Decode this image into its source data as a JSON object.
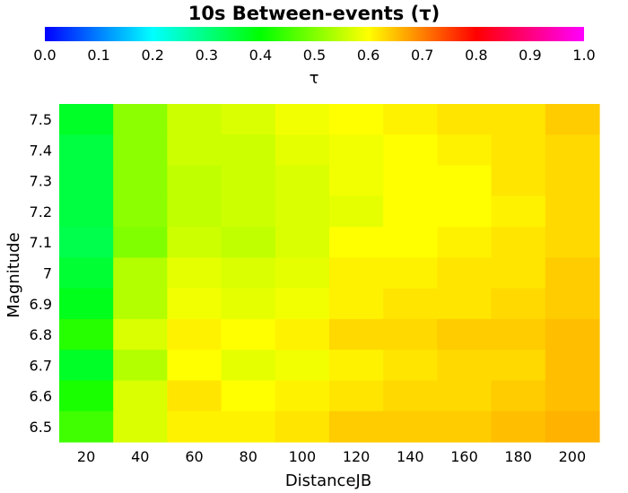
{
  "chart_data": {
    "type": "heatmap",
    "title": "10s Between-events (τ)",
    "colorbar": {
      "label": "τ",
      "range": [
        0.0,
        1.0
      ],
      "ticks": [
        "0.0",
        "0.1",
        "0.2",
        "0.3",
        "0.4",
        "0.5",
        "0.6",
        "0.7",
        "0.8",
        "0.9",
        "1.0"
      ],
      "colormap": [
        "#0000ff",
        "#00ffff",
        "#00ff00",
        "#ffff00",
        "#ff0000",
        "#ff00ff"
      ]
    },
    "xlabel": "DistanceJB",
    "ylabel": "Magnitude",
    "x": [
      20,
      40,
      60,
      80,
      100,
      120,
      140,
      160,
      180,
      200
    ],
    "y": [
      "7.5",
      "7.4",
      "7.3",
      "7.2",
      "7.1",
      "7",
      "6.9",
      "6.8",
      "6.7",
      "6.6",
      "6.5"
    ],
    "values": [
      [
        0.37,
        0.51,
        0.56,
        0.57,
        0.59,
        0.6,
        0.61,
        0.62,
        0.62,
        0.64
      ],
      [
        0.35,
        0.51,
        0.56,
        0.56,
        0.58,
        0.59,
        0.6,
        0.61,
        0.62,
        0.63
      ],
      [
        0.35,
        0.51,
        0.55,
        0.56,
        0.57,
        0.59,
        0.6,
        0.6,
        0.62,
        0.63
      ],
      [
        0.35,
        0.51,
        0.55,
        0.56,
        0.57,
        0.58,
        0.6,
        0.6,
        0.61,
        0.63
      ],
      [
        0.34,
        0.5,
        0.56,
        0.55,
        0.57,
        0.6,
        0.6,
        0.61,
        0.62,
        0.63
      ],
      [
        0.36,
        0.54,
        0.58,
        0.57,
        0.58,
        0.61,
        0.61,
        0.62,
        0.62,
        0.64
      ],
      [
        0.38,
        0.54,
        0.59,
        0.58,
        0.59,
        0.61,
        0.62,
        0.62,
        0.63,
        0.64
      ],
      [
        0.43,
        0.57,
        0.61,
        0.6,
        0.61,
        0.63,
        0.63,
        0.64,
        0.64,
        0.65
      ],
      [
        0.37,
        0.54,
        0.6,
        0.58,
        0.59,
        0.61,
        0.62,
        0.63,
        0.63,
        0.65
      ],
      [
        0.42,
        0.57,
        0.62,
        0.6,
        0.61,
        0.62,
        0.63,
        0.63,
        0.64,
        0.65
      ],
      [
        0.45,
        0.57,
        0.61,
        0.61,
        0.62,
        0.64,
        0.64,
        0.64,
        0.65,
        0.66
      ]
    ]
  }
}
